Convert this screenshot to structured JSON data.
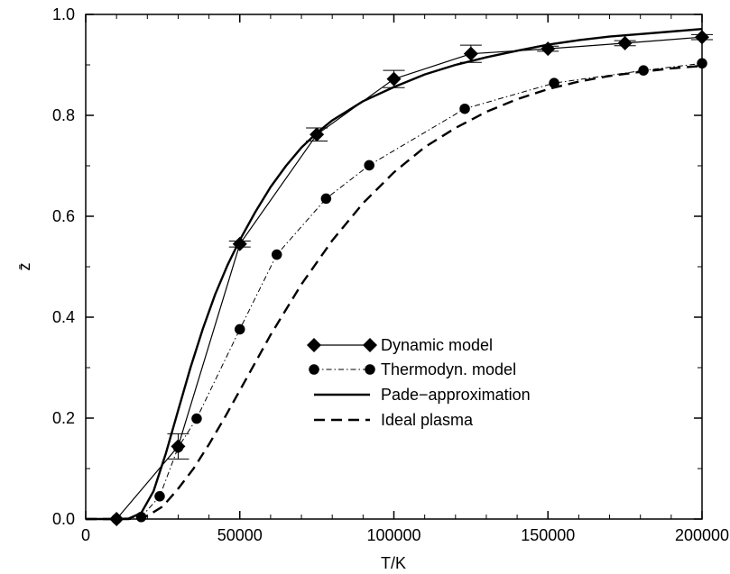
{
  "chart_data": {
    "type": "line",
    "xlabel": "T/K",
    "ylabel": "z̄",
    "xlim": [
      0,
      200000
    ],
    "ylim": [
      0,
      1.0
    ],
    "x_ticks": [
      "0",
      "50000",
      "100000",
      "150000",
      "200000"
    ],
    "y_ticks": [
      "0.0",
      "0.2",
      "0.4",
      "0.6",
      "0.8",
      "1.0"
    ],
    "grid": false,
    "legend_position": "center-right",
    "series": [
      {
        "name": "Dynamic model",
        "style": "solid-thin",
        "marker": "diamond",
        "color": "#000000",
        "x": [
          10000,
          30000,
          50000,
          75000,
          100000,
          125000,
          150000,
          175000,
          200000
        ],
        "y": [
          0.0,
          0.144,
          0.545,
          0.762,
          0.872,
          0.922,
          0.932,
          0.943,
          0.955
        ],
        "err": [
          0.0,
          0.025,
          0.006,
          0.013,
          0.017,
          0.017,
          0.005,
          0.005,
          0.005
        ]
      },
      {
        "name": "Thermodyn. model",
        "style": "dash-dot",
        "marker": "circle",
        "color": "#000000",
        "x": [
          10000,
          18000,
          24000,
          30000,
          36000,
          50000,
          62000,
          78000,
          92000,
          123000,
          152000,
          181000,
          200000
        ],
        "y": [
          0.0,
          0.004,
          0.045,
          0.142,
          0.199,
          0.376,
          0.524,
          0.635,
          0.701,
          0.813,
          0.864,
          0.889,
          0.903
        ]
      },
      {
        "name": "Pade−approximation",
        "style": "solid-thick",
        "color": "#000000",
        "x": [
          0,
          10000,
          14000,
          18000,
          22000,
          26000,
          30000,
          34000,
          38000,
          42000,
          46000,
          50000,
          55000,
          60000,
          65000,
          70000,
          75000,
          80000,
          90000,
          100000,
          110000,
          120000,
          130000,
          140000,
          150000,
          160000,
          170000,
          180000,
          190000,
          200000
        ],
        "y": [
          0.0,
          0.0,
          0.001,
          0.012,
          0.055,
          0.13,
          0.215,
          0.3,
          0.377,
          0.445,
          0.503,
          0.553,
          0.608,
          0.658,
          0.7,
          0.736,
          0.765,
          0.79,
          0.828,
          0.856,
          0.881,
          0.9,
          0.915,
          0.928,
          0.94,
          0.949,
          0.956,
          0.961,
          0.966,
          0.971
        ]
      },
      {
        "name": "Ideal plasma",
        "style": "dashed",
        "color": "#000000",
        "x": [
          0,
          14000,
          20000,
          25000,
          30000,
          35000,
          40000,
          45000,
          50000,
          60000,
          70000,
          80000,
          90000,
          100000,
          110000,
          120000,
          130000,
          140000,
          150000,
          160000,
          170000,
          180000,
          190000,
          200000
        ],
        "y": [
          0.0,
          0.0,
          0.006,
          0.025,
          0.06,
          0.1,
          0.148,
          0.2,
          0.255,
          0.365,
          0.465,
          0.552,
          0.626,
          0.687,
          0.737,
          0.775,
          0.807,
          0.832,
          0.852,
          0.867,
          0.878,
          0.886,
          0.893,
          0.898
        ]
      }
    ]
  }
}
